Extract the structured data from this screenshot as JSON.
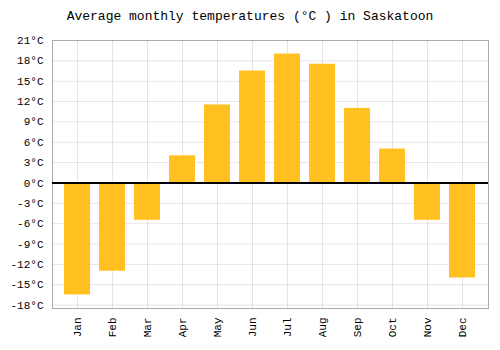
{
  "chart_data": {
    "type": "bar",
    "title": "Average monthly temperatures (°C ) in Saskatoon",
    "categories": [
      "Jan",
      "Feb",
      "Mar",
      "Apr",
      "May",
      "Jun",
      "Jul",
      "Aug",
      "Sep",
      "Oct",
      "Nov",
      "Dec"
    ],
    "values": [
      -16.5,
      -13.0,
      -5.5,
      4.0,
      11.5,
      16.5,
      19.0,
      17.5,
      11.0,
      5.0,
      -5.5,
      -14.0
    ],
    "color": "#FFC020",
    "ylim": [
      -18.5,
      21
    ],
    "yticks": [
      {
        "value": -18,
        "label": "-18°C"
      },
      {
        "value": -15,
        "label": "-15°C"
      },
      {
        "value": -12,
        "label": "-12°C"
      },
      {
        "value": -9,
        "label": "-9°C"
      },
      {
        "value": -6,
        "label": "-6°C"
      },
      {
        "value": -3,
        "label": "-3°C"
      },
      {
        "value": 0,
        "label": "0°C"
      },
      {
        "value": 3,
        "label": "3°C"
      },
      {
        "value": 6,
        "label": "6°C"
      },
      {
        "value": 9,
        "label": "9°C"
      },
      {
        "value": 12,
        "label": "12°C"
      },
      {
        "value": 15,
        "label": "15°C"
      },
      {
        "value": 18,
        "label": "18°C"
      },
      {
        "value": 21,
        "label": "21°C"
      }
    ],
    "grid": true
  }
}
